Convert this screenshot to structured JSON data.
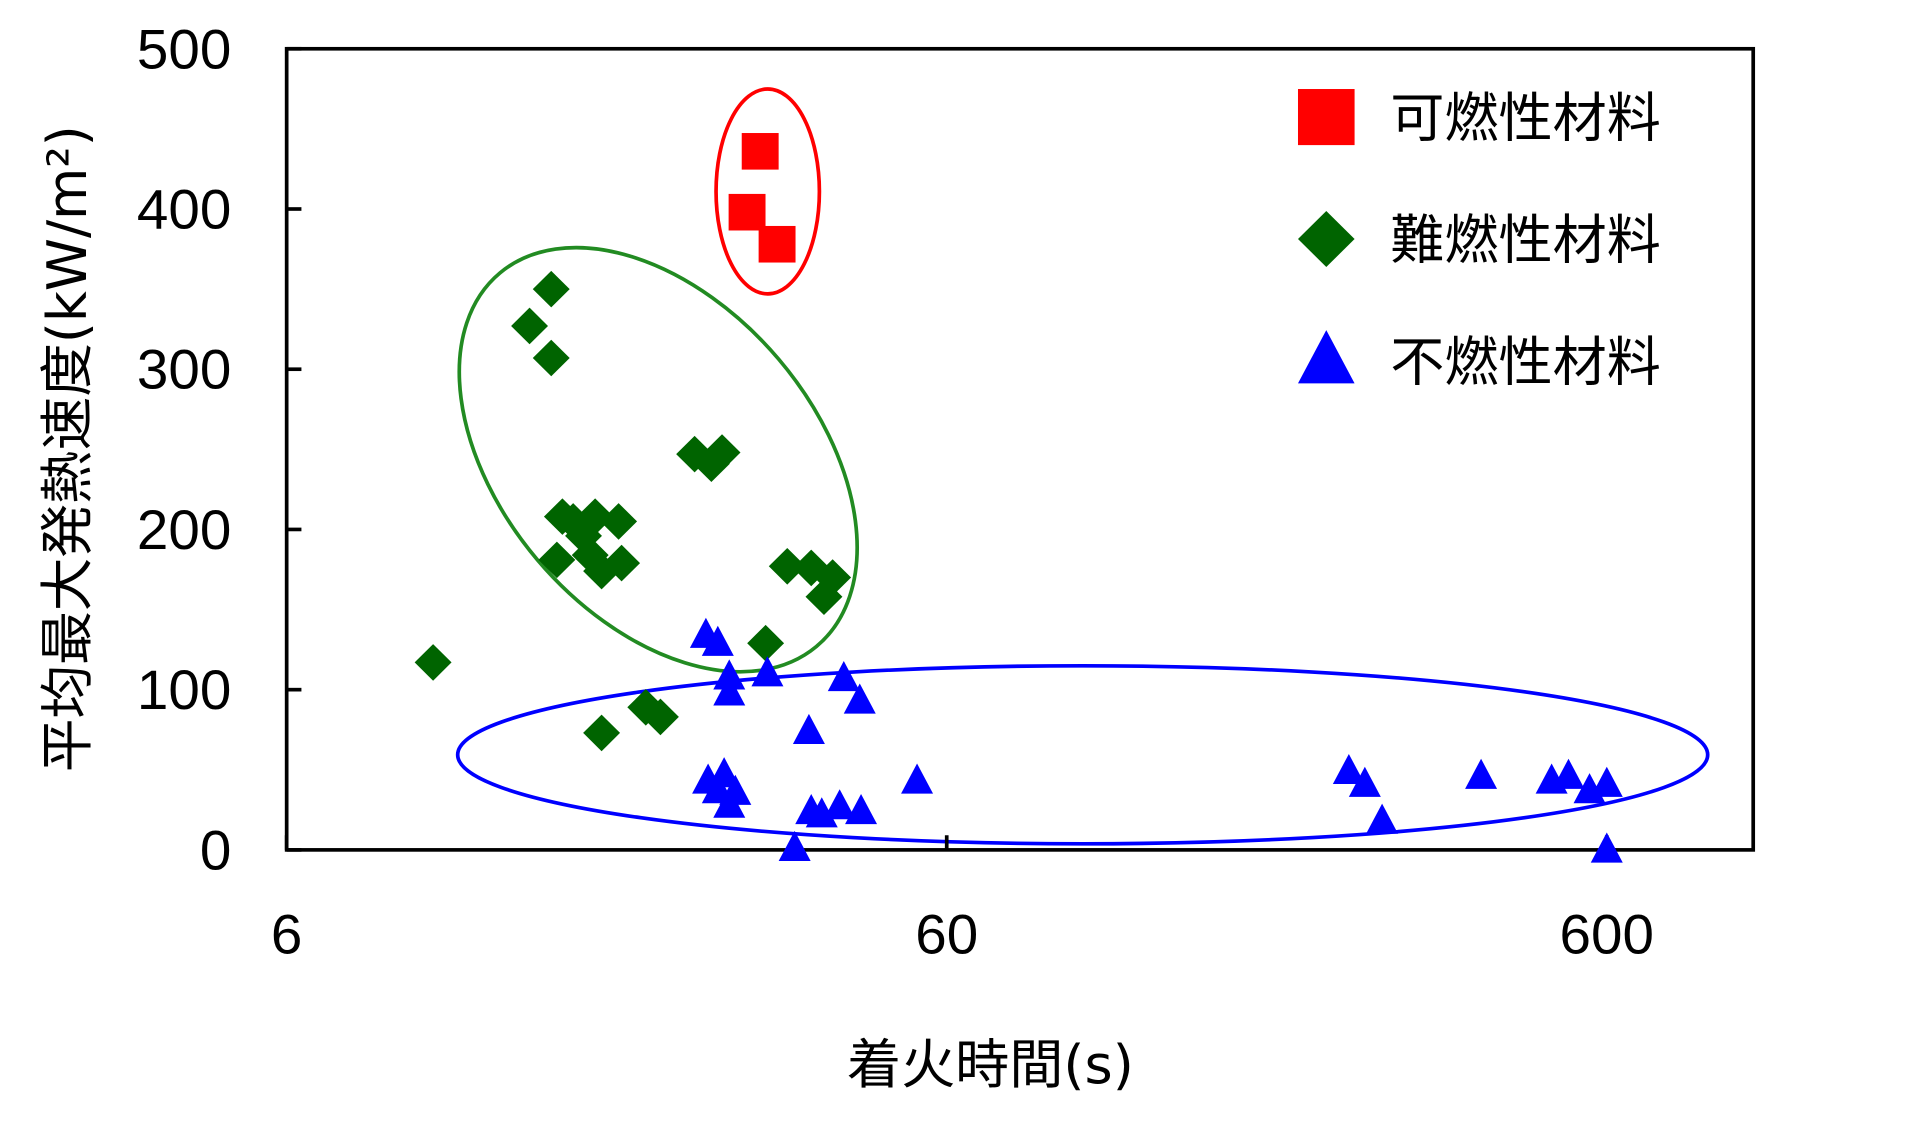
{
  "chart_data": {
    "type": "scatter",
    "x_label": "着火時間(s)",
    "y_label": "平均最大発熱速度(kW/m²)",
    "xscale": "log",
    "xlim": [
      6,
      1000
    ],
    "xticks": [
      6,
      60,
      600
    ],
    "ylim": [
      0,
      500
    ],
    "yticks": [
      0,
      100,
      200,
      300,
      400,
      500
    ],
    "legend": "upper right",
    "series": [
      {
        "name": "可燃性材料",
        "color": "#ff0000",
        "marker": "square",
        "x": [
          31.3,
          29.9,
          33.2
        ],
        "values": [
          436,
          398,
          378
        ]
      },
      {
        "name": "難燃性材料",
        "color": "#006400",
        "marker": "diamond",
        "x": [
          10.0,
          14.0,
          15.1,
          15.1,
          15.7,
          16.3,
          15.4,
          16.9,
          17.6,
          19.1,
          18.0,
          19.3,
          17.3,
          24.9,
          27.4,
          26.4,
          31.9,
          34.4,
          37.4,
          40.3,
          39.1,
          18.0,
          21.0,
          22.1
        ],
        "values": [
          117,
          327,
          350,
          307,
          208,
          205,
          181,
          196,
          208,
          205,
          174,
          179,
          184,
          247,
          248,
          241,
          129,
          177,
          176,
          170,
          158,
          73,
          89,
          83
        ]
      },
      {
        "name": "不燃性材料",
        "color": "#0000ff",
        "marker": "triangle",
        "x": [
          25.9,
          27.0,
          28.1,
          28.1,
          32.1,
          41.9,
          44.3,
          37.1,
          26.1,
          27.6,
          28.7,
          27.0,
          28.1,
          37.4,
          38.8,
          41.3,
          44.5,
          35.3,
          54.1,
          244,
          258,
          274,
          387,
          495,
          525,
          565,
          600,
          600
        ],
        "values": [
          134,
          129,
          108,
          98,
          110,
          107,
          93,
          74,
          43,
          47,
          36,
          37,
          28,
          24,
          22,
          27,
          24,
          1,
          43,
          49,
          41,
          18,
          46,
          43,
          46,
          37,
          41,
          0
        ]
      }
    ]
  }
}
